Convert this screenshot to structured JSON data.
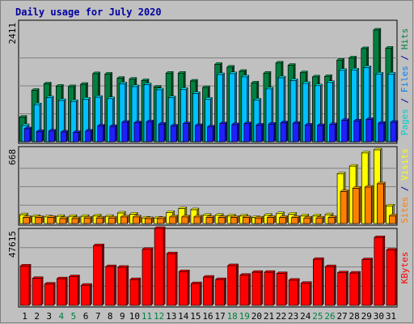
{
  "chart_data": {
    "type": "bar",
    "title": "Daily usage for July 2020",
    "categories": [
      "1",
      "2",
      "3",
      "4",
      "5",
      "6",
      "7",
      "8",
      "9",
      "10",
      "11",
      "12",
      "13",
      "14",
      "15",
      "16",
      "17",
      "18",
      "19",
      "20",
      "21",
      "22",
      "23",
      "24",
      "25",
      "26",
      "27",
      "28",
      "29",
      "30",
      "31"
    ],
    "weekend_days": [
      "4",
      "5",
      "11",
      "12",
      "18",
      "19",
      "25",
      "26"
    ],
    "panels": [
      {
        "name": "hits-files-pages",
        "max_label": "2411",
        "ymax": 2411,
        "label_parts": [
          {
            "text": "Pages",
            "color": "#00cccc"
          },
          {
            "text": " / ",
            "color": "#0000a0"
          },
          {
            "text": "Files",
            "color": "#0080ff"
          },
          {
            "text": " / ",
            "color": "#0000a0"
          },
          {
            "text": "Hits",
            "color": "#008040"
          }
        ],
        "series": [
          {
            "name": "Hits",
            "color": "#008040",
            "values": [
              530,
              1110,
              1250,
              1200,
              1190,
              1240,
              1470,
              1460,
              1370,
              1350,
              1320,
              1180,
              1480,
              1480,
              1310,
              1170,
              1670,
              1610,
              1520,
              1270,
              1480,
              1700,
              1650,
              1490,
              1400,
              1410,
              1760,
              1810,
              2010,
              2411,
              2020
            ]
          },
          {
            "name": "Files",
            "color": "#00c0ff",
            "values": [
              350,
              800,
              950,
              890,
              870,
              920,
              960,
              930,
              1250,
              1190,
              1230,
              1120,
              950,
              1130,
              1040,
              920,
              1450,
              1470,
              1400,
              900,
              1140,
              1380,
              1320,
              1260,
              1210,
              1280,
              1540,
              1550,
              1600,
              1460,
              1460
            ]
          },
          {
            "name": "Pages",
            "color": "#2020ff",
            "values": [
              280,
              220,
              230,
              210,
              200,
              230,
              340,
              330,
              420,
              410,
              430,
              380,
              340,
              390,
              350,
              320,
              390,
              370,
              390,
              360,
              380,
              410,
              400,
              360,
              350,
              370,
              460,
              450,
              480,
              400,
              420
            ]
          }
        ]
      },
      {
        "name": "visits-sites",
        "max_label": "668",
        "ymax": 668,
        "label_parts": [
          {
            "text": "Sites",
            "color": "#ff8000"
          },
          {
            "text": " / ",
            "color": "#0000a0"
          },
          {
            "text": "Visits",
            "color": "#ffff00"
          }
        ],
        "series": [
          {
            "name": "Visits",
            "color": "#ffff00",
            "values": [
              80,
              65,
              60,
              65,
              65,
              65,
              70,
              65,
              95,
              85,
              50,
              50,
              100,
              135,
              125,
              75,
              75,
              70,
              70,
              55,
              75,
              90,
              85,
              70,
              70,
              80,
              450,
              520,
              640,
              668,
              160
            ]
          },
          {
            "name": "Sites",
            "color": "#ff8000",
            "values": [
              55,
              55,
              55,
              45,
              45,
              50,
              50,
              50,
              60,
              60,
              45,
              45,
              60,
              60,
              60,
              55,
              55,
              55,
              55,
              50,
              55,
              55,
              55,
              50,
              50,
              55,
              290,
              320,
              330,
              360,
              70
            ]
          }
        ]
      },
      {
        "name": "kbytes",
        "max_label": "47615",
        "ymax": 47615,
        "label_parts": [
          {
            "text": "KBytes",
            "color": "#ff0000"
          }
        ],
        "series": [
          {
            "name": "KBytes",
            "color": "#ff0000",
            "values": [
              24400,
              16700,
              13200,
              16500,
              17800,
              12500,
              37000,
              24000,
              23600,
              16000,
              34700,
              47615,
              32000,
              20900,
              13500,
              17500,
              16000,
              24600,
              18700,
              20500,
              20500,
              19700,
              15600,
              13700,
              28500,
              24000,
              20200,
              20000,
              28300,
              42000,
              34200
            ]
          }
        ]
      }
    ]
  }
}
